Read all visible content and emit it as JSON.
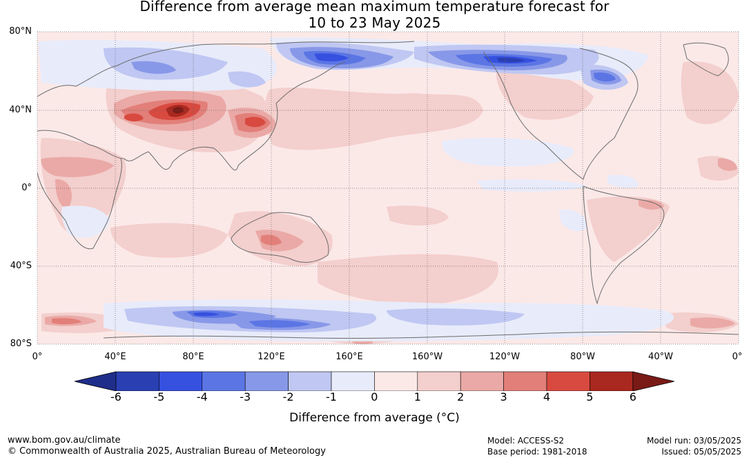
{
  "title": {
    "line1": "Difference from average mean maximum temperature forecast for",
    "line2": "10 to 23 May 2025"
  },
  "map": {
    "lat_labels": [
      "80°N",
      "40°N",
      "0°",
      "40°S",
      "80°S"
    ],
    "lon_labels": [
      "0°",
      "40°E",
      "80°E",
      "120°E",
      "160°E",
      "160°W",
      "120°W",
      "80°W",
      "40°W",
      "0°"
    ],
    "colorbar": {
      "ticks": [
        "-6",
        "-5",
        "-4",
        "-3",
        "-2",
        "-1",
        "0",
        "1",
        "2",
        "3",
        "4",
        "5",
        "6"
      ],
      "colors": [
        "#1f2e8a",
        "#2a3fb2",
        "#3651e0",
        "#5b75e4",
        "#8898e8",
        "#bfc7f2",
        "#e8ebfa",
        "#fbe9e8",
        "#f3cfcd",
        "#eaa9a6",
        "#e27f79",
        "#d84a40",
        "#a9281f",
        "#7a1a16"
      ],
      "label": "Difference from average (°C)"
    }
  },
  "footer": {
    "website": "www.bom.gov.au/climate",
    "copyright": "© Commonwealth of Australia 2025, Australian Bureau of Meteorology",
    "model": "Model: ACCESS-S2",
    "base_period": "Base period: 1981-2018",
    "model_run": "Model run: 03/05/2025",
    "issued": "Issued: 05/05/2025"
  }
}
